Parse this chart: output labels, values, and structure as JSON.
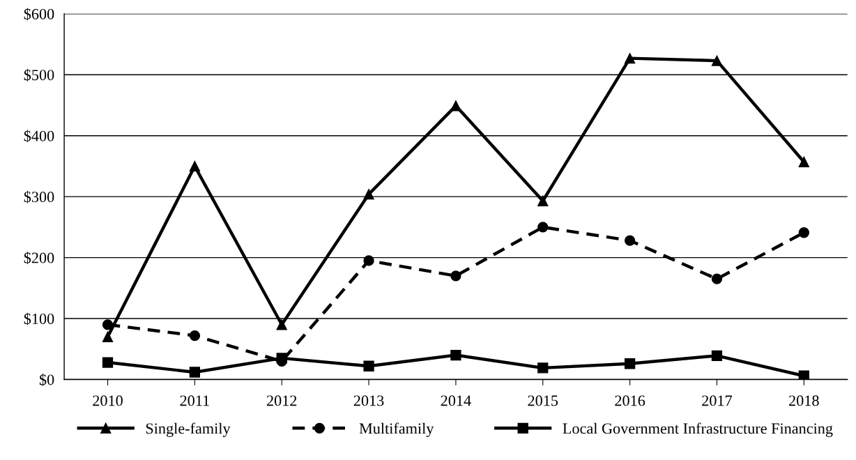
{
  "chart_data": {
    "type": "line",
    "categories": [
      "2010",
      "2011",
      "2012",
      "2013",
      "2014",
      "2015",
      "2016",
      "2017",
      "2018"
    ],
    "series": [
      {
        "name": "Single-family",
        "color": "#000000",
        "marker": "triangle",
        "line_style": "solid",
        "values": [
          70,
          350,
          90,
          304,
          449,
          293,
          527,
          523,
          357
        ]
      },
      {
        "name": "Multifamily",
        "color": "#000000",
        "marker": "circle",
        "line_style": "dashed",
        "values": [
          90,
          72,
          30,
          195,
          170,
          250,
          228,
          165,
          241
        ]
      },
      {
        "name": "Local Government Infrastructure Financing",
        "color": "#000000",
        "marker": "square",
        "line_style": "solid",
        "values": [
          28,
          12,
          35,
          22,
          40,
          19,
          26,
          39,
          6
        ]
      }
    ],
    "ylim": [
      0,
      600
    ],
    "yticks": [
      {
        "value": 0,
        "label": "$0"
      },
      {
        "value": 100,
        "label": "$100"
      },
      {
        "value": 200,
        "label": "$200"
      },
      {
        "value": 300,
        "label": "$300"
      },
      {
        "value": 400,
        "label": "$400"
      },
      {
        "value": 500,
        "label": "$500"
      },
      {
        "value": 600,
        "label": "$600"
      }
    ],
    "grid": "y",
    "legend": "bottom"
  }
}
